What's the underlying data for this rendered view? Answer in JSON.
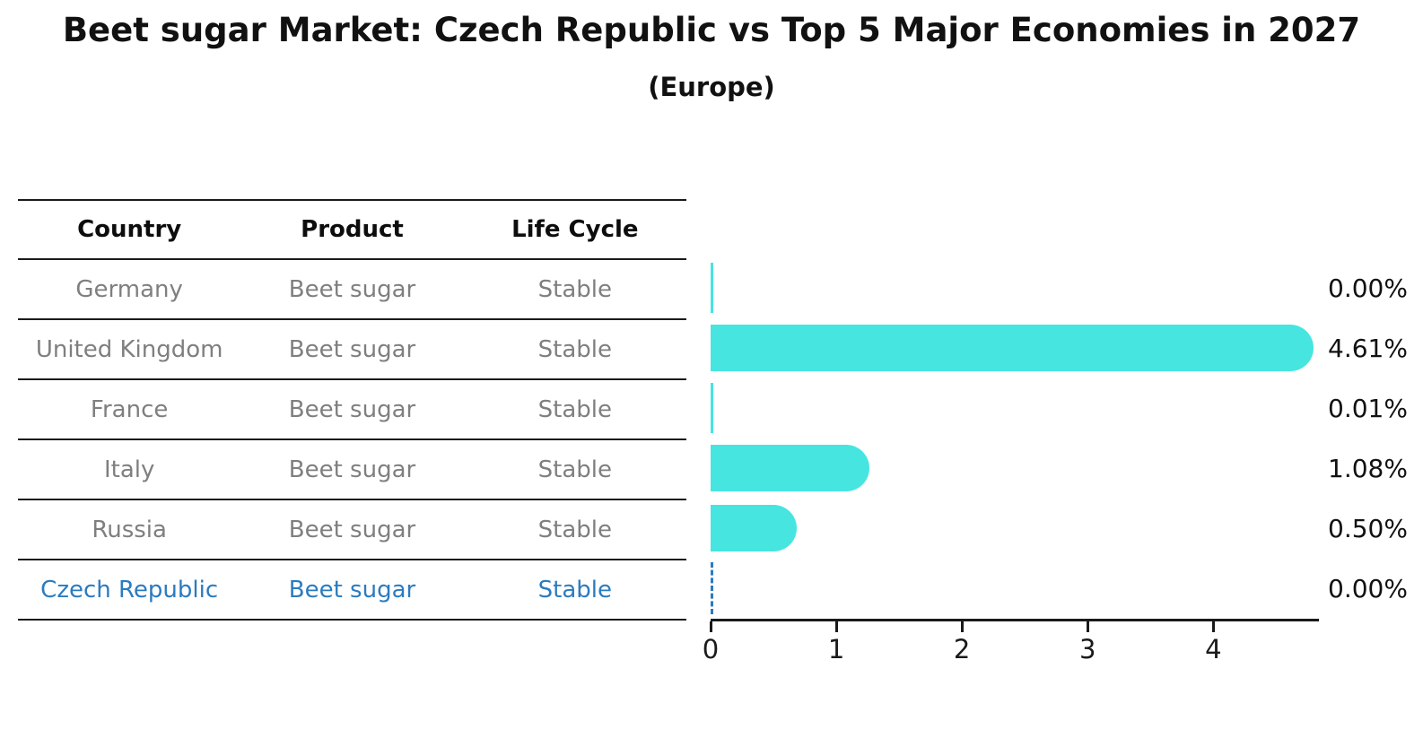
{
  "title": "Beet sugar Market: Czech Republic vs Top 5 Major Economies in 2027",
  "subtitle": "(Europe)",
  "table": {
    "headers": [
      "Country",
      "Product",
      "Life Cycle"
    ],
    "rows": [
      {
        "country": "Germany",
        "product": "Beet sugar",
        "life_cycle": "Stable",
        "highlight": false
      },
      {
        "country": "United Kingdom",
        "product": "Beet sugar",
        "life_cycle": "Stable",
        "highlight": false
      },
      {
        "country": "France",
        "product": "Beet sugar",
        "life_cycle": "Stable",
        "highlight": false
      },
      {
        "country": "Italy",
        "product": "Beet sugar",
        "life_cycle": "Stable",
        "highlight": false
      },
      {
        "country": "Russia",
        "product": "Beet sugar",
        "life_cycle": "Stable",
        "highlight": false
      },
      {
        "country": "Czech Republic",
        "product": "Beet sugar",
        "life_cycle": "Stable",
        "highlight": true
      }
    ]
  },
  "chart_data": {
    "type": "bar",
    "orientation": "horizontal",
    "title": "Beet sugar Market: Czech Republic vs Top 5 Major Economies in 2027",
    "subtitle": "(Europe)",
    "categories": [
      "Germany",
      "United Kingdom",
      "France",
      "Italy",
      "Russia",
      "Czech Republic"
    ],
    "values": [
      0.0,
      4.61,
      0.01,
      1.08,
      0.5,
      0.0
    ],
    "value_labels": [
      "0.00%",
      "4.61%",
      "0.01%",
      "1.08%",
      "0.50%",
      "0.00%"
    ],
    "x_ticks": [
      "0",
      "1",
      "2",
      "3",
      "4"
    ],
    "xlim": [
      0,
      4.84
    ],
    "grid": false,
    "legend": false,
    "highlight": {
      "category": "Czech Republic",
      "index": 5,
      "marker": "dashed-zero-line"
    }
  },
  "colors": {
    "bar": "#46e5e0",
    "highlight_blue": "#2b7bbf",
    "row_text_gray": "#7f7f7f",
    "axis_line": "#1a1a1a",
    "title_text": "#111111",
    "background": "#ffffff"
  }
}
